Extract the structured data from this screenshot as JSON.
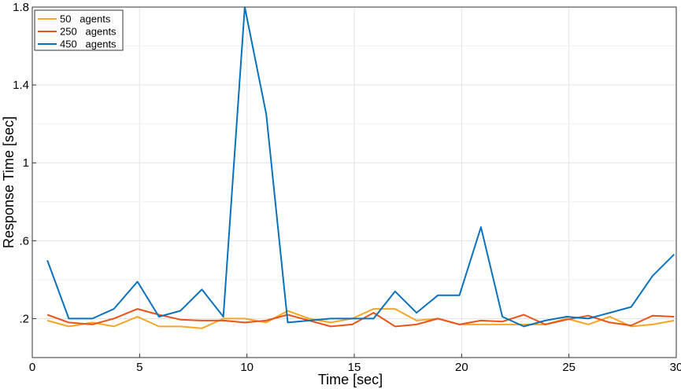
{
  "chart_data": {
    "type": "line",
    "title": "",
    "xlabel": "Time [sec]",
    "ylabel": "Response Time [sec]",
    "xlim": [
      0,
      30
    ],
    "ylim": [
      0,
      1.8
    ],
    "xticks": [
      0,
      5,
      10,
      15,
      20,
      25,
      30
    ],
    "xtick_labels": [
      "0",
      "5",
      "10",
      "15",
      "20",
      "25",
      "30"
    ],
    "yticks": [
      0.2,
      0.6,
      1.0,
      1.4,
      1.8
    ],
    "ytick_labels": [
      ".2",
      ".6",
      "1",
      "1.4",
      "1.8"
    ],
    "grid": true,
    "legend_position": "top-left",
    "x": [
      0.7,
      1.7,
      2.8,
      3.8,
      4.9,
      5.9,
      6.9,
      7.9,
      8.9,
      9.9,
      10.9,
      11.9,
      12.9,
      13.9,
      14.9,
      15.9,
      16.9,
      17.9,
      18.9,
      19.9,
      20.9,
      21.9,
      22.9,
      23.9,
      24.9,
      25.9,
      26.9,
      27.9,
      28.9,
      29.9
    ],
    "series": [
      {
        "name": "50   agents",
        "color": "#f5a623",
        "values": [
          0.19,
          0.16,
          0.18,
          0.16,
          0.21,
          0.16,
          0.16,
          0.15,
          0.2,
          0.2,
          0.18,
          0.24,
          0.2,
          0.18,
          0.2,
          0.25,
          0.25,
          0.19,
          0.2,
          0.17,
          0.17,
          0.17,
          0.17,
          0.17,
          0.2,
          0.17,
          0.21,
          0.16,
          0.17,
          0.19
        ]
      },
      {
        "name": "250   agents",
        "color": "#e8541a",
        "values": [
          0.22,
          0.18,
          0.17,
          0.2,
          0.25,
          0.22,
          0.195,
          0.19,
          0.19,
          0.18,
          0.19,
          0.22,
          0.19,
          0.16,
          0.17,
          0.23,
          0.16,
          0.17,
          0.2,
          0.17,
          0.19,
          0.185,
          0.22,
          0.17,
          0.195,
          0.215,
          0.18,
          0.165,
          0.215,
          0.21
        ]
      },
      {
        "name": "450   agents",
        "color": "#0a72bc",
        "values": [
          0.5,
          0.2,
          0.2,
          0.25,
          0.39,
          0.21,
          0.24,
          0.35,
          0.21,
          1.8,
          1.25,
          0.18,
          0.19,
          0.2,
          0.2,
          0.2,
          0.34,
          0.23,
          0.32,
          0.32,
          0.67,
          0.21,
          0.16,
          0.19,
          0.21,
          0.2,
          0.23,
          0.26,
          0.42,
          0.53
        ]
      }
    ]
  }
}
